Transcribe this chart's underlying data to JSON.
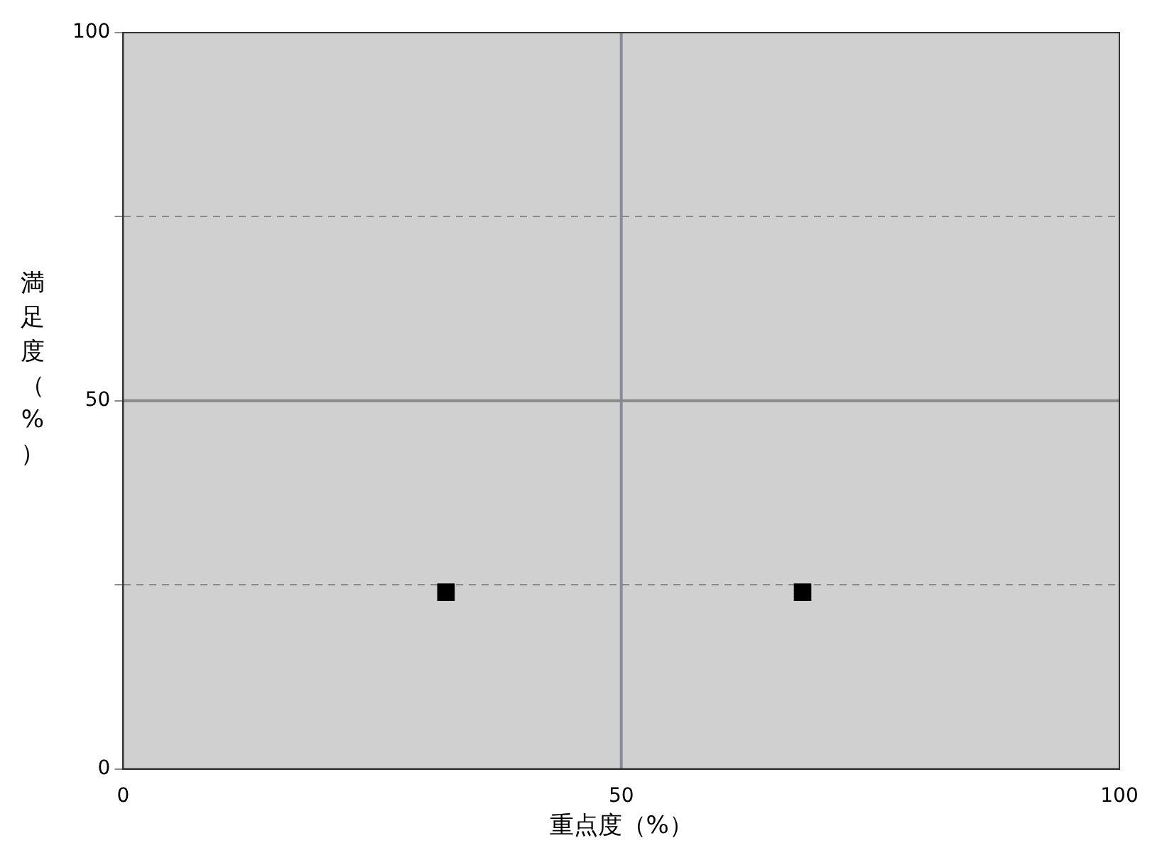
{
  "chart_data": {
    "type": "scatter",
    "xlabel": "重点度（%）",
    "ylabel": "満足度（%）",
    "x": [
      32.4,
      68.2
    ],
    "series": [
      {
        "color": "#000000",
        "values": [
          24,
          24
        ]
      }
    ],
    "marker": "square",
    "xlim": [
      0,
      100
    ],
    "xticks": [
      0,
      50,
      100
    ],
    "ylim": [
      0,
      100
    ],
    "yticks": [
      0,
      {
        "value": 25,
        "label": null
      },
      50,
      {
        "value": 75,
        "label": null
      },
      100
    ],
    "grid": "y",
    "legend": false,
    "ref_lines": [
      {
        "axis": "x",
        "value": 50,
        "color": "#8a8a9a"
      },
      {
        "axis": "y",
        "value": 50,
        "color": "#888888"
      }
    ]
  }
}
